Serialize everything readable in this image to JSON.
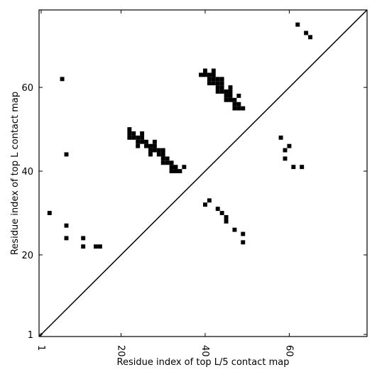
{
  "chart_data": {
    "type": "scatter",
    "marker": "square",
    "color": "#000000",
    "xlabel": "Residue index of top L/5 contact map",
    "ylabel": "Residue index of top L contact map",
    "xlim": [
      0.5,
      78.5
    ],
    "ylim": [
      0.5,
      78.5
    ],
    "xticks": [
      1,
      20,
      40,
      60
    ],
    "yticks": [
      1,
      20,
      40,
      60
    ],
    "diagonal": true,
    "x": [
      6,
      7,
      3,
      7,
      7,
      11,
      11,
      14,
      15,
      62,
      64,
      65,
      40,
      42,
      39,
      40,
      41,
      42,
      41,
      42,
      43,
      44,
      41,
      42,
      43,
      44,
      43,
      44,
      46,
      43,
      44,
      45,
      46,
      45,
      46,
      48,
      45,
      46,
      47,
      47,
      48,
      47,
      48,
      49,
      22,
      22,
      23,
      25,
      22,
      23,
      24,
      25,
      24,
      25,
      26,
      28,
      24,
      26,
      27,
      28,
      27,
      28,
      29,
      30,
      27,
      29,
      30,
      30,
      31,
      30,
      31,
      32,
      32,
      33,
      35,
      32,
      33,
      34,
      58,
      60,
      59,
      59,
      61,
      63,
      40,
      41,
      43,
      44,
      45,
      45,
      47,
      49,
      49
    ],
    "y": [
      62,
      44,
      30,
      27,
      24,
      24,
      22,
      22,
      22,
      75,
      73,
      72,
      64,
      64,
      63,
      63,
      63,
      63,
      62,
      62,
      62,
      62,
      61,
      61,
      61,
      61,
      60,
      60,
      60,
      59,
      59,
      59,
      59,
      58,
      58,
      58,
      57,
      57,
      57,
      56,
      56,
      55,
      55,
      55,
      50,
      49,
      49,
      49,
      48,
      48,
      48,
      48,
      47,
      47,
      47,
      47,
      46,
      46,
      46,
      46,
      45,
      45,
      45,
      45,
      44,
      44,
      44,
      43,
      43,
      42,
      42,
      42,
      41,
      41,
      41,
      40,
      40,
      40,
      48,
      46,
      45,
      43,
      41,
      41,
      32,
      33,
      31,
      30,
      29,
      28,
      26,
      25,
      23
    ]
  }
}
